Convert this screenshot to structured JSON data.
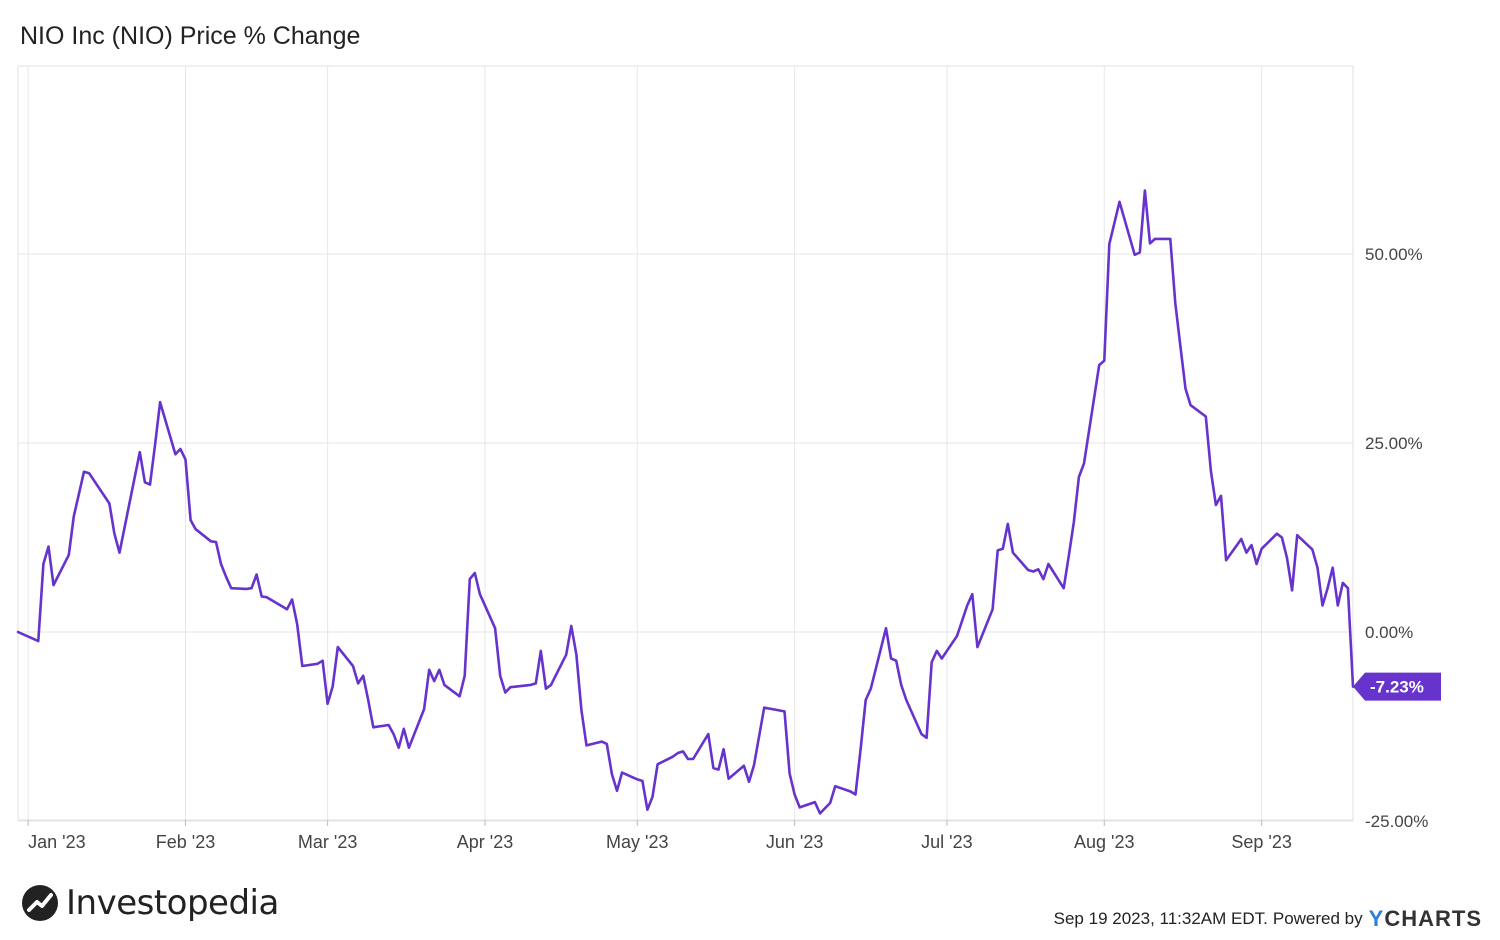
{
  "title": "NIO Inc (NIO) Price % Change",
  "footer": {
    "brand": "Investopedia",
    "timestamp": "Sep 19 2023, 11:32AM EDT.",
    "powered_by": "Powered by",
    "ycharts_y": "Y",
    "ycharts_rest": "CHARTS"
  },
  "colors": {
    "line": "#6633cc",
    "grid": "#e6e6e6",
    "label_bg": "#6633cc",
    "ycharts_accent": "#2f7fd6"
  },
  "icons": {
    "brand_logo": "investopedia-logo-icon"
  },
  "chart_data": {
    "type": "line",
    "title": "NIO Inc (NIO) Price % Change",
    "xlabel": "",
    "ylabel": "",
    "ylim": [
      -25,
      75
    ],
    "xlim": [
      "2022-12-30",
      "2023-09-19"
    ],
    "y_ticks": [
      {
        "value": 50,
        "label": "50.00%"
      },
      {
        "value": 25,
        "label": "25.00%"
      },
      {
        "value": 0,
        "label": "0.00%"
      },
      {
        "value": -25,
        "label": "-25.00%"
      }
    ],
    "x_ticks": [
      {
        "date": "2023-01-01",
        "label": "Jan '23"
      },
      {
        "date": "2023-02-01",
        "label": "Feb '23"
      },
      {
        "date": "2023-03-01",
        "label": "Mar '23"
      },
      {
        "date": "2023-04-01",
        "label": "Apr '23"
      },
      {
        "date": "2023-05-01",
        "label": "May '23"
      },
      {
        "date": "2023-06-01",
        "label": "Jun '23"
      },
      {
        "date": "2023-07-01",
        "label": "Jul '23"
      },
      {
        "date": "2023-08-01",
        "label": "Aug '23"
      },
      {
        "date": "2023-09-01",
        "label": "Sep '23"
      }
    ],
    "grid": true,
    "last_value_label": "-7.23%",
    "series": [
      {
        "values": [
          [
            "2022-12-30",
            0.0
          ],
          [
            "2023-01-03",
            -1.2
          ],
          [
            "2023-01-04",
            9.0
          ],
          [
            "2023-01-05",
            11.3
          ],
          [
            "2023-01-06",
            6.2
          ],
          [
            "2023-01-09",
            10.2
          ],
          [
            "2023-01-10",
            15.3
          ],
          [
            "2023-01-12",
            21.2
          ],
          [
            "2023-01-13",
            21.0
          ],
          [
            "2023-01-17",
            17.0
          ],
          [
            "2023-01-18",
            13.0
          ],
          [
            "2023-01-19",
            10.5
          ],
          [
            "2023-01-23",
            23.8
          ],
          [
            "2023-01-24",
            19.8
          ],
          [
            "2023-01-25",
            19.5
          ],
          [
            "2023-01-26",
            24.8
          ],
          [
            "2023-01-27",
            30.4
          ],
          [
            "2023-01-30",
            23.5
          ],
          [
            "2023-01-31",
            24.2
          ],
          [
            "2023-02-01",
            22.8
          ],
          [
            "2023-02-02",
            14.8
          ],
          [
            "2023-02-03",
            13.6
          ],
          [
            "2023-02-06",
            12.0
          ],
          [
            "2023-02-07",
            11.9
          ],
          [
            "2023-02-08",
            9.0
          ],
          [
            "2023-02-09",
            7.3
          ],
          [
            "2023-02-10",
            5.8
          ],
          [
            "2023-02-13",
            5.7
          ],
          [
            "2023-02-14",
            5.8
          ],
          [
            "2023-02-15",
            7.6
          ],
          [
            "2023-02-16",
            4.7
          ],
          [
            "2023-02-17",
            4.6
          ],
          [
            "2023-02-21",
            3.0
          ],
          [
            "2023-02-22",
            4.3
          ],
          [
            "2023-02-23",
            1.0
          ],
          [
            "2023-02-24",
            -4.5
          ],
          [
            "2023-02-27",
            -4.2
          ],
          [
            "2023-02-28",
            -3.8
          ],
          [
            "2023-03-01",
            -9.5
          ],
          [
            "2023-03-02",
            -7.2
          ],
          [
            "2023-03-03",
            -2.0
          ],
          [
            "2023-03-06",
            -4.5
          ],
          [
            "2023-03-07",
            -6.8
          ],
          [
            "2023-03-08",
            -5.8
          ],
          [
            "2023-03-09",
            -9.0
          ],
          [
            "2023-03-10",
            -12.6
          ],
          [
            "2023-03-13",
            -12.3
          ],
          [
            "2023-03-14",
            -13.5
          ],
          [
            "2023-03-15",
            -15.3
          ],
          [
            "2023-03-16",
            -12.8
          ],
          [
            "2023-03-17",
            -15.3
          ],
          [
            "2023-03-20",
            -10.2
          ],
          [
            "2023-03-21",
            -5.0
          ],
          [
            "2023-03-22",
            -6.5
          ],
          [
            "2023-03-23",
            -5.0
          ],
          [
            "2023-03-24",
            -7.0
          ],
          [
            "2023-03-27",
            -8.5
          ],
          [
            "2023-03-28",
            -5.8
          ],
          [
            "2023-03-29",
            7.0
          ],
          [
            "2023-03-30",
            7.8
          ],
          [
            "2023-03-31",
            5.0
          ],
          [
            "2023-04-03",
            0.5
          ],
          [
            "2023-04-04",
            -5.8
          ],
          [
            "2023-04-05",
            -8.0
          ],
          [
            "2023-04-06",
            -7.3
          ],
          [
            "2023-04-10",
            -7.0
          ],
          [
            "2023-04-11",
            -6.8
          ],
          [
            "2023-04-12",
            -2.5
          ],
          [
            "2023-04-13",
            -7.5
          ],
          [
            "2023-04-14",
            -7.0
          ],
          [
            "2023-04-17",
            -3.0
          ],
          [
            "2023-04-18",
            0.8
          ],
          [
            "2023-04-19",
            -3.0
          ],
          [
            "2023-04-20",
            -10.3
          ],
          [
            "2023-04-21",
            -15.0
          ],
          [
            "2023-04-24",
            -14.5
          ],
          [
            "2023-04-25",
            -14.8
          ],
          [
            "2023-04-26",
            -18.8
          ],
          [
            "2023-04-27",
            -21.0
          ],
          [
            "2023-04-28",
            -18.6
          ],
          [
            "2023-05-01",
            -19.5
          ],
          [
            "2023-05-02",
            -19.7
          ],
          [
            "2023-05-03",
            -23.5
          ],
          [
            "2023-05-04",
            -21.8
          ],
          [
            "2023-05-05",
            -17.5
          ],
          [
            "2023-05-08",
            -16.5
          ],
          [
            "2023-05-09",
            -16.0
          ],
          [
            "2023-05-10",
            -15.8
          ],
          [
            "2023-05-11",
            -16.8
          ],
          [
            "2023-05-12",
            -16.8
          ],
          [
            "2023-05-15",
            -13.5
          ],
          [
            "2023-05-16",
            -18.0
          ],
          [
            "2023-05-17",
            -18.2
          ],
          [
            "2023-05-18",
            -15.5
          ],
          [
            "2023-05-19",
            -19.4
          ],
          [
            "2023-05-22",
            -17.7
          ],
          [
            "2023-05-23",
            -19.8
          ],
          [
            "2023-05-24",
            -17.6
          ],
          [
            "2023-05-25",
            -13.8
          ],
          [
            "2023-05-26",
            -10.0
          ],
          [
            "2023-05-30",
            -10.5
          ],
          [
            "2023-05-31",
            -18.7
          ],
          [
            "2023-06-01",
            -21.5
          ],
          [
            "2023-06-02",
            -23.2
          ],
          [
            "2023-06-05",
            -22.5
          ],
          [
            "2023-06-06",
            -24.0
          ],
          [
            "2023-06-07",
            -23.3
          ],
          [
            "2023-06-08",
            -22.6
          ],
          [
            "2023-06-09",
            -20.4
          ],
          [
            "2023-06-12",
            -21.1
          ],
          [
            "2023-06-13",
            -21.5
          ],
          [
            "2023-06-14",
            -15.5
          ],
          [
            "2023-06-15",
            -9.0
          ],
          [
            "2023-06-16",
            -7.5
          ],
          [
            "2023-06-19",
            0.5
          ],
          [
            "2023-06-20",
            -3.5
          ],
          [
            "2023-06-21",
            -3.8
          ],
          [
            "2023-06-22",
            -7.0
          ],
          [
            "2023-06-23",
            -9.0
          ],
          [
            "2023-06-26",
            -13.5
          ],
          [
            "2023-06-27",
            -14.0
          ],
          [
            "2023-06-28",
            -4.0
          ],
          [
            "2023-06-29",
            -2.5
          ],
          [
            "2023-06-30",
            -3.5
          ],
          [
            "2023-07-03",
            -0.5
          ],
          [
            "2023-07-05",
            3.5
          ],
          [
            "2023-07-06",
            5.0
          ],
          [
            "2023-07-07",
            -2.0
          ],
          [
            "2023-07-10",
            3.0
          ],
          [
            "2023-07-11",
            10.8
          ],
          [
            "2023-07-12",
            11.0
          ],
          [
            "2023-07-13",
            14.3
          ],
          [
            "2023-07-14",
            10.5
          ],
          [
            "2023-07-17",
            8.2
          ],
          [
            "2023-07-18",
            8.0
          ],
          [
            "2023-07-19",
            8.3
          ],
          [
            "2023-07-20",
            7.0
          ],
          [
            "2023-07-21",
            9.0
          ],
          [
            "2023-07-24",
            5.8
          ],
          [
            "2023-07-25",
            10.0
          ],
          [
            "2023-07-26",
            14.5
          ],
          [
            "2023-07-27",
            20.5
          ],
          [
            "2023-07-28",
            22.3
          ],
          [
            "2023-07-31",
            35.3
          ],
          [
            "2023-08-01",
            35.9
          ],
          [
            "2023-08-02",
            51.3
          ],
          [
            "2023-08-04",
            56.9
          ],
          [
            "2023-08-07",
            49.9
          ],
          [
            "2023-08-08",
            50.2
          ],
          [
            "2023-08-09",
            58.4
          ],
          [
            "2023-08-10",
            51.4
          ],
          [
            "2023-08-11",
            52.0
          ],
          [
            "2023-08-14",
            52.0
          ],
          [
            "2023-08-15",
            43.5
          ],
          [
            "2023-08-16",
            37.8
          ],
          [
            "2023-08-17",
            32.2
          ],
          [
            "2023-08-18",
            30.0
          ],
          [
            "2023-08-21",
            28.5
          ],
          [
            "2023-08-22",
            21.3
          ],
          [
            "2023-08-23",
            16.8
          ],
          [
            "2023-08-24",
            18.0
          ],
          [
            "2023-08-25",
            9.5
          ],
          [
            "2023-08-28",
            12.3
          ],
          [
            "2023-08-29",
            10.5
          ],
          [
            "2023-08-30",
            11.5
          ],
          [
            "2023-08-31",
            9.0
          ],
          [
            "2023-09-01",
            11.0
          ],
          [
            "2023-09-04",
            13.0
          ],
          [
            "2023-09-05",
            12.5
          ],
          [
            "2023-09-06",
            9.8
          ],
          [
            "2023-09-07",
            5.5
          ],
          [
            "2023-09-08",
            12.8
          ],
          [
            "2023-09-11",
            10.9
          ],
          [
            "2023-09-12",
            8.5
          ],
          [
            "2023-09-13",
            3.5
          ],
          [
            "2023-09-14",
            5.8
          ],
          [
            "2023-09-15",
            8.5
          ],
          [
            "2023-09-16",
            3.5
          ],
          [
            "2023-09-17",
            6.5
          ],
          [
            "2023-09-18",
            5.8
          ],
          [
            "2023-09-19",
            -7.23
          ]
        ]
      }
    ]
  }
}
